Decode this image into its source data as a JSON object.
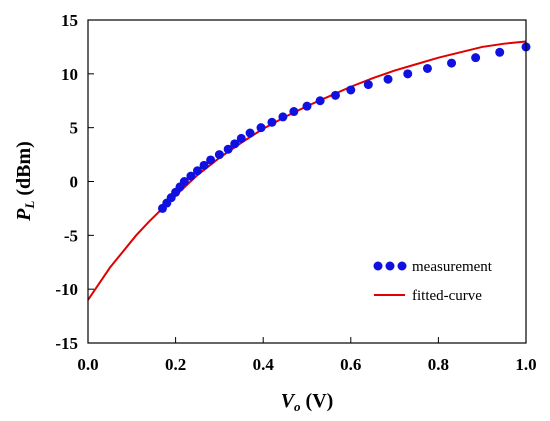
{
  "chart_data": {
    "type": "scatter",
    "title": "",
    "xlabel": "V",
    "xlabel_sub": "o",
    "xlabel_unit": " (V)",
    "ylabel": "P",
    "ylabel_sub": "L",
    "ylabel_unit": " (dBm)",
    "xlim": [
      0.0,
      1.0
    ],
    "ylim": [
      -15,
      15
    ],
    "x_ticks": [
      "0.0",
      "0.2",
      "0.4",
      "0.6",
      "0.8",
      "1.0"
    ],
    "y_ticks": [
      "-15",
      "-10",
      "-5",
      "0",
      "5",
      "10",
      "15"
    ],
    "grid": false,
    "legend_position": "lower-right",
    "series": [
      {
        "name": "measurement",
        "kind": "scatter",
        "color": "#1010e0",
        "x": [
          0.17,
          0.18,
          0.19,
          0.2,
          0.21,
          0.22,
          0.235,
          0.25,
          0.265,
          0.28,
          0.3,
          0.32,
          0.335,
          0.35,
          0.37,
          0.395,
          0.42,
          0.445,
          0.47,
          0.5,
          0.53,
          0.565,
          0.6,
          0.64,
          0.685,
          0.73,
          0.775,
          0.83,
          0.885,
          0.94,
          1.0
        ],
        "y": [
          -2.5,
          -2.0,
          -1.5,
          -1.0,
          -0.5,
          0.0,
          0.5,
          1.0,
          1.5,
          2.0,
          2.5,
          3.0,
          3.5,
          4.0,
          4.5,
          5.0,
          5.5,
          6.0,
          6.5,
          7.0,
          7.5,
          8.0,
          8.5,
          9.0,
          9.5,
          10.0,
          10.5,
          11.0,
          11.5,
          12.0,
          12.5
        ]
      },
      {
        "name": "fitted-curve",
        "kind": "line",
        "color": "#e00000",
        "x": [
          0.0,
          0.02,
          0.05,
          0.08,
          0.11,
          0.14,
          0.17,
          0.2,
          0.25,
          0.3,
          0.35,
          0.4,
          0.45,
          0.5,
          0.55,
          0.6,
          0.65,
          0.7,
          0.75,
          0.8,
          0.85,
          0.9,
          0.95,
          1.0
        ],
        "y": [
          -11.0,
          -9.8,
          -8.0,
          -6.5,
          -5.0,
          -3.7,
          -2.5,
          -1.3,
          0.6,
          2.2,
          3.6,
          4.9,
          6.0,
          7.0,
          7.9,
          8.8,
          9.6,
          10.3,
          10.9,
          11.5,
          12.0,
          12.5,
          12.8,
          13.0
        ]
      }
    ]
  }
}
